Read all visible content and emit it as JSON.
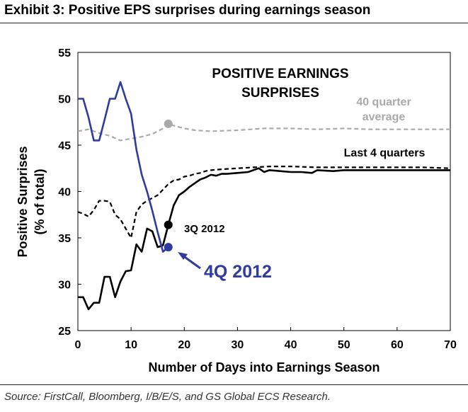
{
  "exhibit_title": "Exhibit 3: Positive EPS surprises during earnings season",
  "source": "Source: FirstCall, Bloomberg, I/B/E/S, and GS Global ECS Research.",
  "chart_data": {
    "type": "line",
    "title": "",
    "inner_title_lines": [
      "POSITIVE EARNINGS",
      "SURPRISES"
    ],
    "xlabel": "Number of Days into Earnings Season",
    "ylabel_lines": [
      "Positive Surprises",
      "(% of total)"
    ],
    "xlim": [
      0,
      70
    ],
    "ylim": [
      25,
      55
    ],
    "xticks": [
      0,
      10,
      20,
      30,
      40,
      50,
      60,
      70
    ],
    "yticks": [
      25,
      30,
      35,
      40,
      45,
      50,
      55
    ],
    "grid": false,
    "series": [
      {
        "name": "",
        "color": "#aaaaaa",
        "dash": true,
        "x": [
          0,
          2,
          4,
          6,
          8,
          10,
          12,
          14,
          16,
          17,
          18,
          20,
          22,
          25,
          30,
          35,
          40,
          45,
          50,
          55,
          60,
          65,
          70
        ],
        "y": [
          46.5,
          46.7,
          46.3,
          46.0,
          45.5,
          45.7,
          45.9,
          46.2,
          46.8,
          47.3,
          47.1,
          46.8,
          46.6,
          46.5,
          46.6,
          46.8,
          46.8,
          46.7,
          46.8,
          46.7,
          46.7,
          46.7,
          46.7
        ]
      },
      {
        "name": "",
        "color": "#000000",
        "dash": true,
        "x": [
          0,
          1,
          2,
          3,
          4,
          5,
          6,
          7,
          8,
          9,
          10,
          11,
          12,
          13,
          14,
          15,
          16,
          17,
          18,
          19,
          20,
          21,
          22,
          23,
          24,
          25,
          27,
          30,
          33,
          36,
          40,
          45,
          50,
          55,
          60,
          65,
          70
        ],
        "y": [
          37.8,
          37.6,
          37.3,
          38.0,
          39.0,
          39.0,
          38.9,
          37.5,
          37.0,
          36.0,
          35.0,
          37.8,
          38.6,
          39.0,
          39.3,
          39.6,
          40.2,
          40.8,
          41.2,
          41.3,
          41.6,
          41.7,
          41.9,
          42.0,
          42.2,
          42.3,
          42.4,
          42.5,
          42.6,
          42.7,
          42.7,
          42.6,
          42.6,
          42.6,
          42.6,
          42.6,
          42.5
        ]
      },
      {
        "name": "",
        "color": "#000000",
        "dash": false,
        "x": [
          0,
          1,
          2,
          3,
          4,
          5,
          6,
          7,
          8,
          9,
          10,
          11,
          12,
          13,
          14,
          15,
          16,
          17,
          18,
          19,
          20,
          21,
          22,
          23,
          24,
          25,
          26,
          27,
          28,
          30,
          32,
          34,
          35,
          36,
          38,
          40,
          42,
          44,
          45,
          48,
          50,
          55,
          60,
          65,
          70
        ],
        "y": [
          28.6,
          28.6,
          27.3,
          28.0,
          28.0,
          30.8,
          30.8,
          28.6,
          30.3,
          31.4,
          31.5,
          34.3,
          33.5,
          36.0,
          35.7,
          34.0,
          34.2,
          36.4,
          38.5,
          39.6,
          40.0,
          40.5,
          40.9,
          41.3,
          41.5,
          41.8,
          41.7,
          41.9,
          41.9,
          42.0,
          42.1,
          42.5,
          42.1,
          42.3,
          42.2,
          42.1,
          42.1,
          42.0,
          42.3,
          42.2,
          42.3,
          42.3,
          42.3,
          42.3,
          42.3
        ]
      },
      {
        "name": "",
        "color": "#2e3b9f",
        "dash": false,
        "x": [
          0,
          1,
          2,
          3,
          4,
          5,
          6,
          7,
          8,
          9,
          10,
          11,
          12,
          13,
          14,
          15,
          16,
          17
        ],
        "y": [
          50.0,
          50.0,
          48.0,
          45.5,
          45.5,
          47.7,
          50.0,
          50.0,
          51.8,
          50.0,
          48.4,
          44.5,
          41.8,
          40.0,
          37.9,
          35.6,
          33.5,
          34.0
        ]
      }
    ],
    "markers": [
      {
        "x": 17,
        "y": 47.3,
        "color": "#aaaaaa"
      },
      {
        "x": 17,
        "y": 36.4,
        "color": "#000000"
      },
      {
        "x": 17,
        "y": 34.0,
        "color": "#2e3b9f"
      }
    ],
    "annotations": [
      {
        "text": "40 quarter",
        "color": "#aaaaaa"
      },
      {
        "text": "average",
        "color": "#aaaaaa"
      },
      {
        "text": "Last 4 quarters",
        "color": "#000000"
      },
      {
        "text": "3Q 2012",
        "color": "#000000"
      },
      {
        "text": "4Q 2012",
        "color": "#2e3b9f"
      }
    ]
  }
}
